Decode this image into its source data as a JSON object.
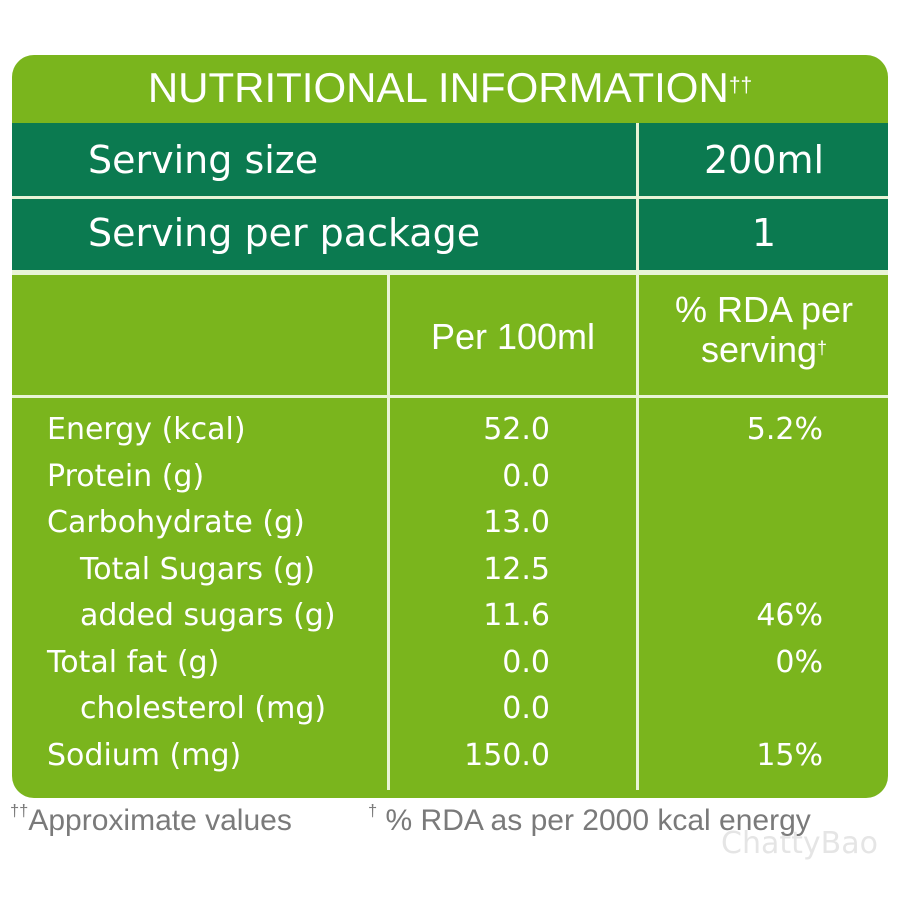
{
  "title": {
    "text": "NUTRITIONAL INFORMATION",
    "mark": "††"
  },
  "serving": [
    {
      "label": "Serving size",
      "value": "200ml"
    },
    {
      "label": "Serving per package",
      "value": "1"
    }
  ],
  "columns": [
    "Per 100ml",
    {
      "text": "% RDA per serving",
      "mark": "†"
    }
  ],
  "rows": [
    {
      "name": "Energy (kcal)",
      "per100": "52.0",
      "rda": "5.2%"
    },
    {
      "name": "Protein (g)",
      "per100": "0.0"
    },
    {
      "name": "Carbohydrate (g)",
      "per100": "13.0"
    },
    {
      "name": "Total Sugars (g)",
      "per100": "12.5",
      "indent": true
    },
    {
      "name": "added sugars (g)",
      "per100": "11.6",
      "rda": "46%",
      "indent": true
    },
    {
      "name": "Total fat (g)",
      "per100": "0.0",
      "rda": "0%"
    },
    {
      "name": "cholesterol (mg)",
      "per100": "0.0",
      "indent": true
    },
    {
      "name": "Sodium (mg)",
      "per100": "150.0",
      "rda": "15%"
    }
  ],
  "footnotes": [
    {
      "mark": "††",
      "text": "Approximate values"
    },
    {
      "mark": "†",
      "text": "% RDA as per 2000 kcal energy"
    }
  ],
  "watermark": "ChattyBao"
}
